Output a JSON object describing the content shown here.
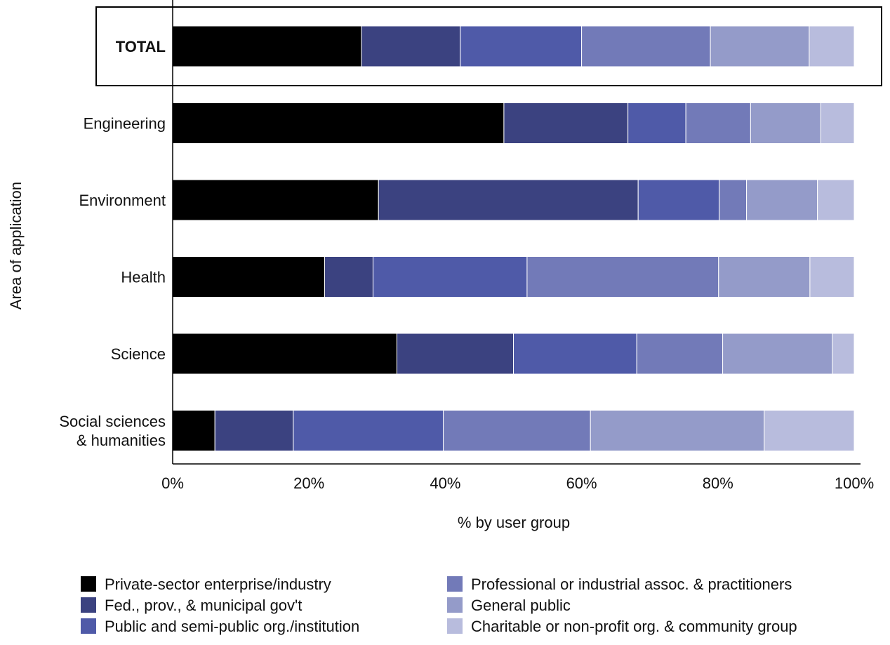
{
  "chart_data": {
    "type": "bar",
    "orientation": "horizontal",
    "stacked": "percent",
    "xlabel": "% by user group",
    "ylabel": "Area of application",
    "xlim": [
      0,
      100
    ],
    "x_ticks": [
      "0%",
      "20%",
      "40%",
      "60%",
      "80%",
      "100%"
    ],
    "categories": [
      "TOTAL",
      "Engineering",
      "Environment",
      "Health",
      "Science",
      "Social sciences & humanities"
    ],
    "category_lines": [
      [
        "TOTAL"
      ],
      [
        "Engineering"
      ],
      [
        "Environment"
      ],
      [
        "Health"
      ],
      [
        "Science"
      ],
      [
        "Social sciences",
        "& humanities"
      ]
    ],
    "highlighted_category": "TOTAL",
    "legend_position": "bottom",
    "series": [
      {
        "name": "Private-sector enterprise/industry",
        "color": "#000000",
        "values": [
          27.7,
          48.6,
          30.2,
          22.3,
          32.9,
          6.2
        ]
      },
      {
        "name": "Fed., prov., & municipal gov't",
        "color": "#3b4280",
        "values": [
          14.5,
          18.2,
          38.1,
          7.1,
          17.1,
          11.5
        ]
      },
      {
        "name": "Public and semi-public org./institution",
        "color": "#4f5aa8",
        "values": [
          17.8,
          8.5,
          11.9,
          22.6,
          18.1,
          22.0
        ]
      },
      {
        "name": "Professional or industrial assoc. & practitioners",
        "color": "#727ab8",
        "values": [
          18.9,
          9.5,
          4.0,
          28.1,
          12.6,
          21.6
        ]
      },
      {
        "name": "General public",
        "color": "#949bc9",
        "values": [
          14.5,
          10.3,
          10.4,
          13.4,
          16.1,
          25.5
        ]
      },
      {
        "name": "Charitable or non-profit org. & community group",
        "color": "#b8bcdd",
        "values": [
          6.6,
          4.9,
          5.4,
          6.5,
          3.2,
          13.2
        ]
      }
    ]
  }
}
